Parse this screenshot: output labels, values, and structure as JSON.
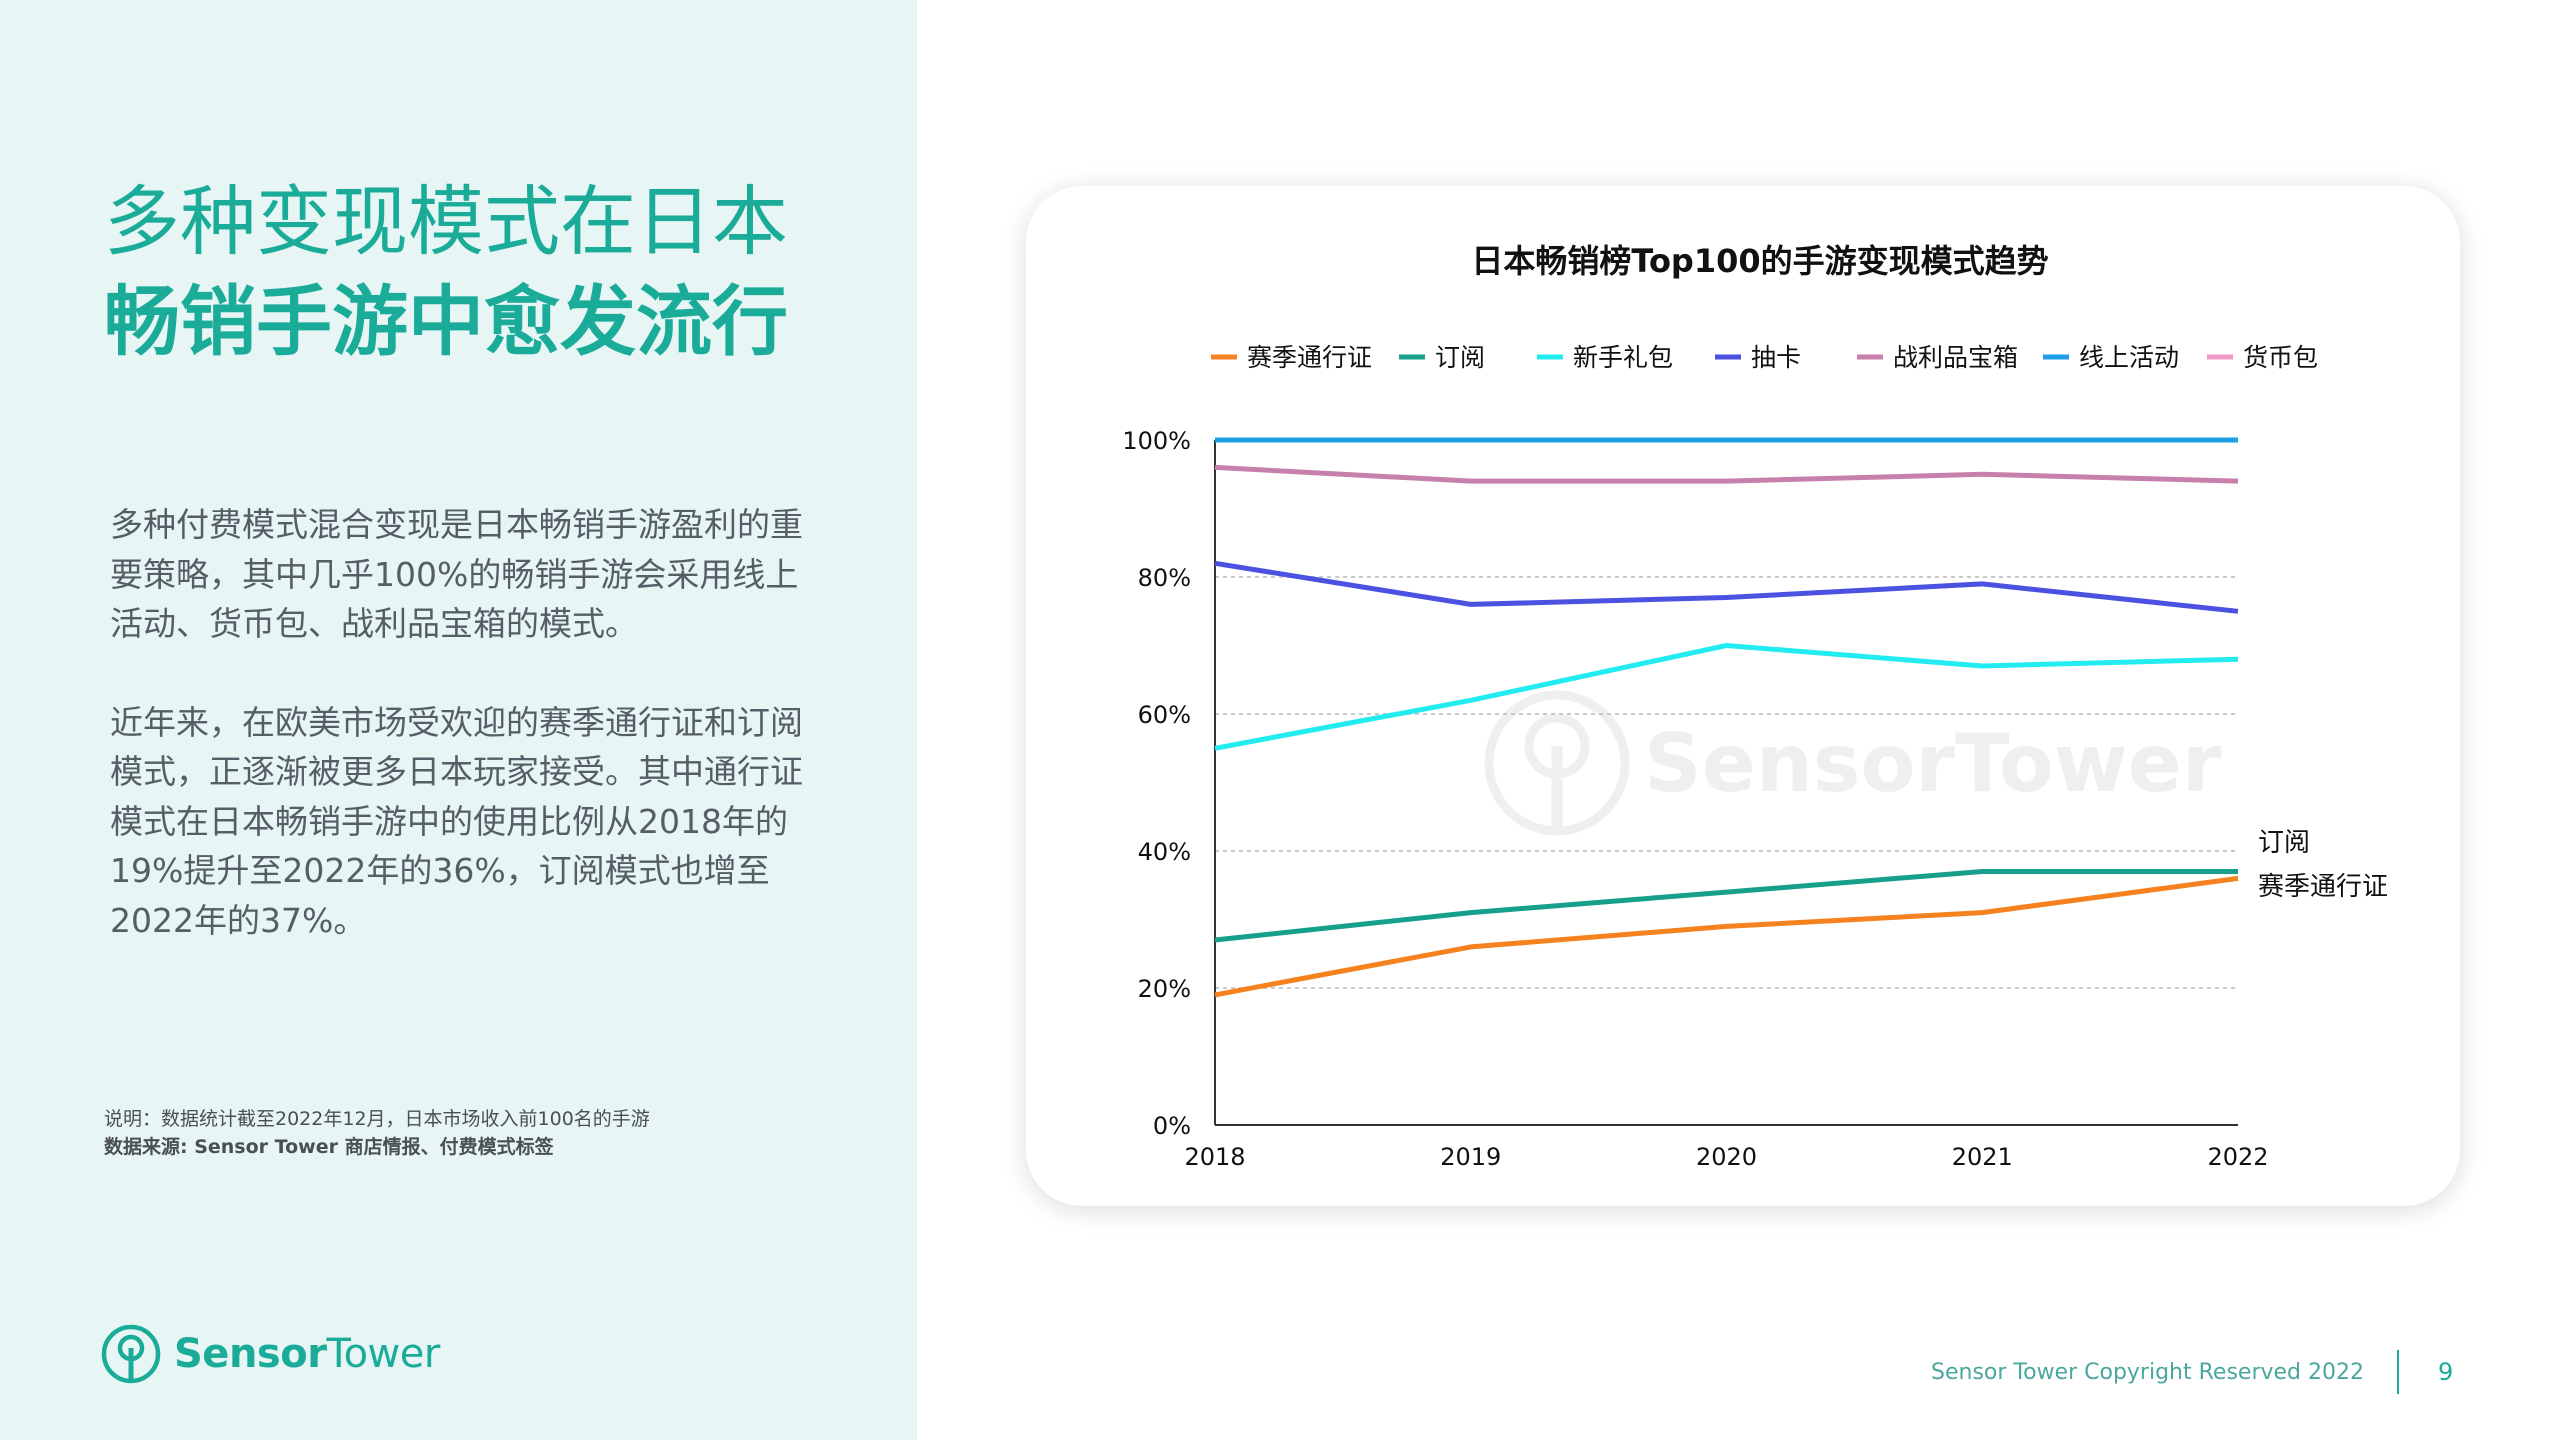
{
  "page": {
    "title_line1": "多种变现模式在日本",
    "title_line2": "畅销手游中愈发流行",
    "paragraph1": "多种付费模式混合变现是日本畅销手游盈利的重要策略，其中几乎100%的畅销手游会采用线上活动、货币包、战利品宝箱的模式。",
    "paragraph2": "近年来，在欧美市场受欢迎的赛季通行证和订阅模式，正逐渐被更多日本玩家接受。其中通行证模式在日本畅销手游中的使用比例从2018年的19%提升至2022年的36%，订阅模式也增至2022年的37%。",
    "note": "说明：数据统计截至2022年12月，日本市场收入前100名的手游",
    "source": "数据来源: Sensor Tower 商店情报、付费模式标签",
    "brand_word1": "Sensor",
    "brand_word2": "Tower",
    "copyright": "Sensor Tower Copyright Reserved 2022",
    "page_number": "9",
    "accent_color": "#1aab99",
    "panel_color": "#e7f5f5"
  },
  "chart_data": {
    "type": "line",
    "title": "日本畅销榜Top100的手游变现模式趋势",
    "x": [
      "2018",
      "2019",
      "2020",
      "2021",
      "2022"
    ],
    "ylim": [
      0,
      100
    ],
    "yticks": [
      "0%",
      "20%",
      "40%",
      "60%",
      "80%",
      "100%"
    ],
    "grid": "horizontal dotted",
    "legend_position": "top",
    "watermark": "SensorTower",
    "series": [
      {
        "name": "赛季通行证",
        "color": "#f5821f",
        "values": [
          19,
          26,
          29,
          31,
          36
        ],
        "end_label": "赛季通行证"
      },
      {
        "name": "订阅",
        "color": "#16a08c",
        "values": [
          27,
          31,
          34,
          37,
          37
        ],
        "end_label": "订阅"
      },
      {
        "name": "新手礼包",
        "color": "#22ecf0",
        "values": [
          55,
          62,
          70,
          67,
          68
        ]
      },
      {
        "name": "抽卡",
        "color": "#4b51e0",
        "values": [
          82,
          76,
          77,
          79,
          75
        ]
      },
      {
        "name": "战利品宝箱",
        "color": "#c77fab",
        "values": [
          96,
          94,
          94,
          95,
          94
        ]
      },
      {
        "name": "线上活动",
        "color": "#1e9ee8",
        "values": [
          100,
          100,
          100,
          100,
          100
        ]
      },
      {
        "name": "货币包",
        "color": "#f098c6",
        "values": [
          100,
          100,
          100,
          100,
          100
        ]
      }
    ]
  }
}
